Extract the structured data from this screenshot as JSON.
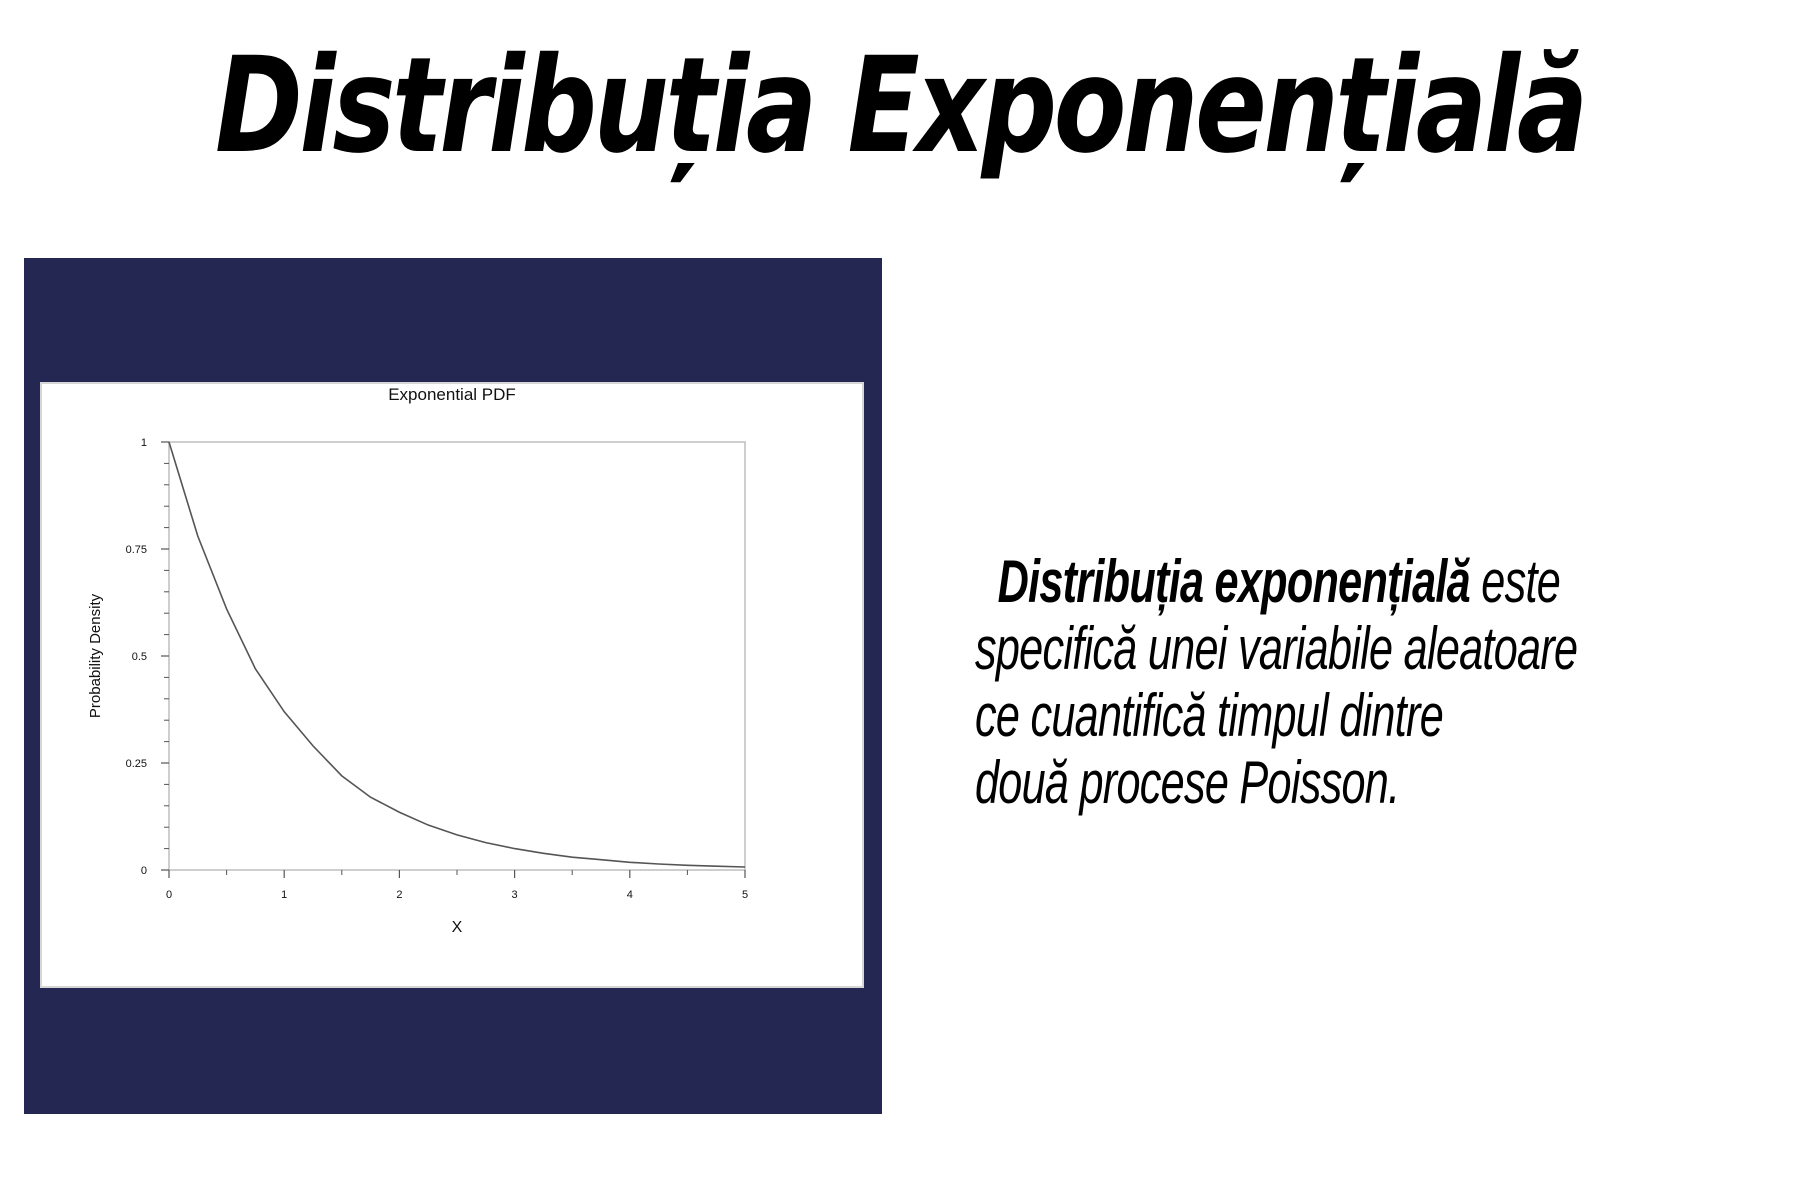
{
  "slide": {
    "title": "Distribuția Exponențială",
    "description": {
      "bold_part": "Distribuția exponențială",
      "line1_rest": " este",
      "line2": "specifică unei variabile aleatoare",
      "line3": "ce cuantifică timpul dintre",
      "line4": "două procese Poisson."
    }
  },
  "colors": {
    "panel_background": "#232752",
    "chart_background": "#ffffff",
    "curve": "#555555"
  },
  "chart_data": {
    "type": "line",
    "title": "Exponential PDF",
    "xlabel": "X",
    "ylabel": "Probability Density",
    "xlim": [
      0,
      5
    ],
    "ylim": [
      0,
      1
    ],
    "x_ticks": [
      "0",
      "1",
      "2",
      "3",
      "4",
      "5"
    ],
    "y_ticks": [
      "0",
      "0.25",
      "0.5",
      "0.75",
      "1"
    ],
    "grid": false,
    "series": [
      {
        "x": [
          0,
          0.25,
          0.5,
          0.75,
          1,
          1.25,
          1.5,
          1.75,
          2,
          2.25,
          2.5,
          2.75,
          3,
          3.25,
          3.5,
          3.75,
          4,
          4.25,
          4.5,
          4.75,
          5
        ],
        "y": [
          1.0,
          0.78,
          0.61,
          0.47,
          0.37,
          0.29,
          0.22,
          0.17,
          0.135,
          0.105,
          0.082,
          0.064,
          0.05,
          0.039,
          0.03,
          0.024,
          0.018,
          0.014,
          0.011,
          0.009,
          0.007
        ]
      }
    ]
  }
}
